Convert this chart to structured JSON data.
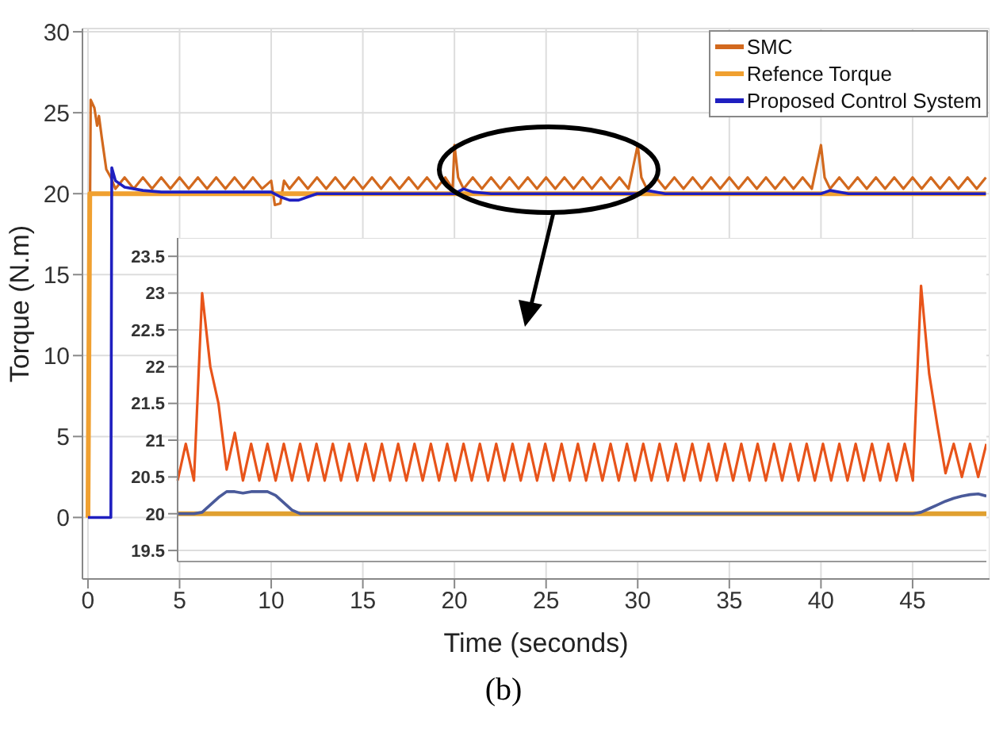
{
  "chart_data": [
    {
      "type": "line",
      "xlabel": "Time (seconds)",
      "ylabel": "Torque (N.m)",
      "annotations": [
        "(b)"
      ],
      "xlim": [
        -0.3,
        49.2
      ],
      "xticks": [
        0,
        5,
        10,
        15,
        20,
        25,
        30,
        35,
        40,
        45
      ],
      "ylim": [
        -3.8,
        30.2
      ],
      "yticks": [
        0,
        5,
        10,
        15,
        20,
        25,
        30
      ],
      "grid": true,
      "legend": "top right",
      "series": [
        {
          "name": "SMC",
          "color": "#d2691e",
          "x": [
            0,
            0.15,
            0.35,
            0.5,
            0.6,
            0.75,
            1,
            1.25,
            1.5,
            2,
            2.5,
            3,
            3.5,
            4,
            4.5,
            5,
            5.5,
            6,
            6.5,
            7,
            7.5,
            8,
            8.5,
            9,
            9.5,
            10,
            10.2,
            10.5,
            10.7,
            11,
            11.5,
            12,
            12.5,
            13,
            13.5,
            14,
            14.5,
            15,
            15.5,
            16,
            16.5,
            17,
            17.5,
            18,
            18.5,
            19,
            19.5,
            19.9,
            20,
            20.2,
            20.5,
            21,
            21.5,
            22,
            22.5,
            23,
            23.5,
            24,
            24.5,
            25,
            25.5,
            26,
            26.5,
            27,
            27.5,
            28,
            28.5,
            29,
            29.5,
            30,
            30.2,
            30.5,
            31,
            31.5,
            32,
            32.5,
            33,
            33.5,
            34,
            34.5,
            35,
            35.5,
            36,
            36.5,
            37,
            37.5,
            38,
            38.5,
            39,
            39.5,
            40,
            40.2,
            40.5,
            41,
            41.5,
            42,
            42.5,
            43,
            43.5,
            44,
            44.5,
            45,
            45.5,
            46,
            46.5,
            47,
            47.5,
            48,
            48.5,
            49
          ],
          "values": [
            0,
            25.8,
            25.3,
            24.2,
            24.8,
            23.5,
            21.5,
            21,
            20.3,
            21,
            20.3,
            21,
            20.3,
            21,
            20.3,
            21,
            20.3,
            21,
            20.3,
            21,
            20.3,
            21,
            20.3,
            21,
            20.3,
            20.8,
            19.3,
            19.4,
            20.8,
            20.3,
            21,
            20.3,
            21,
            20.3,
            21,
            20.3,
            21,
            20.3,
            21,
            20.3,
            21,
            20.3,
            21,
            20.3,
            21,
            20.3,
            21,
            20.3,
            23,
            21,
            20.3,
            21,
            20.3,
            21,
            20.3,
            21,
            20.3,
            21,
            20.3,
            21,
            20.3,
            21,
            20.3,
            21,
            20.3,
            21,
            20.3,
            21,
            20.3,
            23,
            21,
            20.3,
            21,
            20.3,
            21,
            20.3,
            21,
            20.3,
            21,
            20.3,
            21,
            20.3,
            21,
            20.3,
            21,
            20.3,
            21,
            20.3,
            21,
            20.3,
            23,
            21,
            20.3,
            21,
            20.3,
            21,
            20.3,
            21,
            20.3,
            21,
            20.3,
            21,
            20.3,
            21,
            20.3,
            21,
            20.3,
            21,
            20.3,
            21
          ]
        },
        {
          "name": "Refence Torque",
          "color": "#f0a030",
          "x": [
            0,
            0.1,
            49
          ],
          "values": [
            0,
            20,
            20
          ]
        },
        {
          "name": "Proposed Control System",
          "color": "#1f1fc0",
          "x": [
            0,
            0.25,
            1.25,
            1.3,
            1.5,
            2,
            3,
            4,
            6,
            10,
            10.5,
            11,
            11.5,
            12,
            12.5,
            13,
            20,
            20.5,
            21,
            22,
            30,
            30.5,
            31.5,
            40,
            40.5,
            41.5,
            49
          ],
          "values": [
            0,
            0,
            0,
            21.6,
            20.8,
            20.4,
            20.2,
            20.1,
            20.1,
            20.1,
            19.8,
            19.6,
            19.6,
            19.8,
            20,
            20,
            20,
            20.3,
            20.1,
            20,
            20,
            20.2,
            20,
            20,
            20.2,
            20,
            20
          ]
        }
      ]
    },
    {
      "type": "line",
      "tick_labels": "y",
      "grid": "y",
      "ylim": [
        19.35,
        23.75
      ],
      "yticks": [
        19.5,
        20,
        20.5,
        21,
        21.5,
        22,
        22.5,
        23,
        23.5
      ],
      "categories": [
        null,
        null,
        null,
        null,
        null,
        null,
        null,
        null,
        null,
        null,
        null,
        null,
        null,
        null,
        null,
        null,
        null,
        null,
        null,
        null,
        null,
        null,
        null,
        null,
        null,
        null,
        null,
        null,
        null,
        null,
        null,
        null,
        null,
        null,
        null,
        null,
        null,
        null,
        null,
        null,
        null,
        null,
        null,
        null,
        null,
        null,
        null,
        null,
        null,
        null,
        null,
        null,
        null,
        null,
        null,
        null,
        null,
        null,
        null,
        null,
        null,
        null,
        null,
        null,
        null,
        null,
        null,
        null,
        null,
        null,
        null,
        null,
        null,
        null,
        null,
        null,
        null,
        null,
        null,
        null,
        null,
        null,
        null,
        null,
        null,
        null,
        null,
        null,
        null,
        null,
        null,
        null,
        null,
        null,
        null,
        null,
        null,
        null,
        null,
        null
      ],
      "series": [
        {
          "color": "#e8541a",
          "values": [
            20.45,
            20.95,
            20.45,
            23.0,
            22.0,
            21.5,
            20.6,
            21.1,
            20.45,
            20.95,
            20.45,
            20.95,
            20.45,
            20.95,
            20.45,
            20.95,
            20.45,
            20.95,
            20.45,
            20.95,
            20.45,
            20.95,
            20.45,
            20.95,
            20.45,
            20.95,
            20.45,
            20.95,
            20.45,
            20.95,
            20.45,
            20.95,
            20.45,
            20.95,
            20.45,
            20.95,
            20.45,
            20.95,
            20.45,
            20.95,
            20.45,
            20.95,
            20.45,
            20.95,
            20.45,
            20.95,
            20.45,
            20.95,
            20.45,
            20.95,
            20.45,
            20.95,
            20.45,
            20.95,
            20.45,
            20.95,
            20.45,
            20.95,
            20.45,
            20.95,
            20.45,
            20.95,
            20.45,
            20.95,
            20.45,
            20.95,
            20.45,
            20.95,
            20.45,
            20.95,
            20.45,
            20.95,
            20.45,
            20.95,
            20.45,
            20.95,
            20.45,
            20.95,
            20.45,
            20.95,
            20.45,
            20.95,
            20.45,
            20.95,
            20.45,
            20.95,
            20.45,
            20.95,
            20.45,
            20.95,
            20.45,
            23.1,
            21.9,
            21.2,
            20.55,
            20.95,
            20.5,
            20.95,
            20.5,
            20.95
          ]
        },
        {
          "color": "#e0a030",
          "values": [
            20,
            20,
            20,
            20,
            20,
            20,
            20,
            20,
            20,
            20,
            20,
            20,
            20,
            20,
            20,
            20,
            20,
            20,
            20,
            20,
            20,
            20,
            20,
            20,
            20,
            20,
            20,
            20,
            20,
            20,
            20,
            20,
            20,
            20,
            20,
            20,
            20,
            20,
            20,
            20,
            20,
            20,
            20,
            20,
            20,
            20,
            20,
            20,
            20,
            20,
            20,
            20,
            20,
            20,
            20,
            20,
            20,
            20,
            20,
            20,
            20,
            20,
            20,
            20,
            20,
            20,
            20,
            20,
            20,
            20,
            20,
            20,
            20,
            20,
            20,
            20,
            20,
            20,
            20,
            20,
            20,
            20,
            20,
            20,
            20,
            20,
            20,
            20,
            20,
            20,
            20,
            20,
            20,
            20,
            20,
            20,
            20,
            20,
            20,
            20
          ]
        },
        {
          "color": "#4a5a9a",
          "values": [
            20,
            20,
            20,
            20.02,
            20.12,
            20.22,
            20.3,
            20.3,
            20.28,
            20.3,
            20.3,
            20.3,
            20.25,
            20.15,
            20.05,
            20,
            20,
            20,
            20,
            20,
            20,
            20,
            20,
            20,
            20,
            20,
            20,
            20,
            20,
            20,
            20,
            20,
            20,
            20,
            20,
            20,
            20,
            20,
            20,
            20,
            20,
            20,
            20,
            20,
            20,
            20,
            20,
            20,
            20,
            20,
            20,
            20,
            20,
            20,
            20,
            20,
            20,
            20,
            20,
            20,
            20,
            20,
            20,
            20,
            20,
            20,
            20,
            20,
            20,
            20,
            20,
            20,
            20,
            20,
            20,
            20,
            20,
            20,
            20,
            20,
            20,
            20,
            20,
            20,
            20,
            20,
            20,
            20,
            20,
            20,
            20,
            20.02,
            20.07,
            20.12,
            20.17,
            20.21,
            20.24,
            20.26,
            20.27,
            20.24
          ]
        }
      ]
    }
  ]
}
